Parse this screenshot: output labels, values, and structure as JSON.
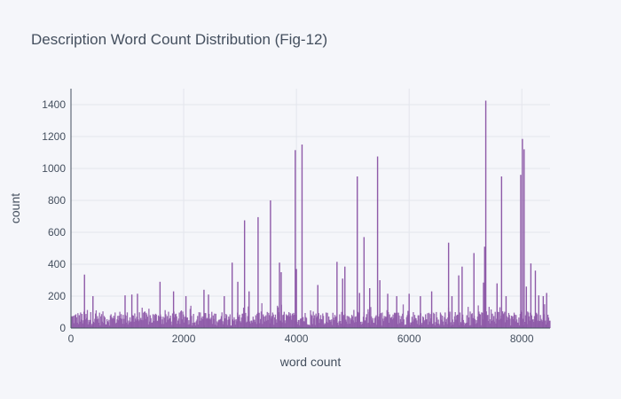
{
  "chart_data": {
    "type": "bar",
    "title": "Description Word Count Distribution (Fig-12)",
    "xlabel": "word count",
    "ylabel": "count",
    "xlim": [
      0,
      8500
    ],
    "ylim": [
      0,
      1500
    ],
    "x_ticks": [
      0,
      2000,
      4000,
      6000,
      8000
    ],
    "x_tick_labels": [
      "0",
      "2000",
      "4000",
      "6000",
      "8000"
    ],
    "y_ticks": [
      0,
      200,
      400,
      600,
      800,
      1000,
      1200,
      1400
    ],
    "y_tick_labels": [
      "0",
      "200",
      "400",
      "600",
      "800",
      "1000",
      "1200",
      "1400"
    ],
    "grid": true,
    "bar_color": "#8e5aa8",
    "background": "#f5f6fa",
    "plot_background": "#f5f6fa",
    "grid_color": "#e3e5ec",
    "text_color": "#444f5e",
    "series": [
      {
        "x": [
          240,
          390,
          960,
          1080,
          1180,
          1580,
          1820,
          2040,
          2360,
          2440,
          2720,
          2860,
          2960,
          3080,
          3160,
          3320,
          3540,
          3700,
          3730,
          3980,
          4000,
          4100,
          4380,
          4720,
          4820,
          4860,
          5080,
          5120,
          5200,
          5300,
          5440,
          5480,
          5620,
          5780,
          6000,
          6200,
          6400,
          6700,
          6760,
          6880,
          6940,
          7150,
          7320,
          7340,
          7360,
          7560,
          7640,
          7720,
          7980,
          8010,
          8040,
          8080,
          8160,
          8240,
          8300,
          8380,
          8440
        ],
        "y": [
          335,
          200,
          205,
          210,
          215,
          290,
          230,
          200,
          240,
          210,
          200,
          410,
          290,
          675,
          230,
          695,
          800,
          410,
          350,
          1115,
          370,
          1150,
          270,
          415,
          310,
          385,
          950,
          220,
          570,
          250,
          1075,
          300,
          215,
          200,
          215,
          200,
          230,
          535,
          200,
          330,
          385,
          470,
          285,
          510,
          1425,
          280,
          950,
          200,
          960,
          1185,
          1120,
          260,
          405,
          360,
          205,
          200,
          220
        ]
      }
    ]
  }
}
